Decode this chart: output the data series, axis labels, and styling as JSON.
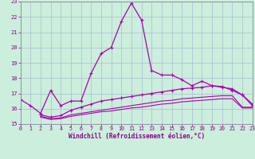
{
  "xlabel": "Windchill (Refroidissement éolien,°C)",
  "bg_color": "#cceedd",
  "grid_color": "#aabbcc",
  "line_color": "#aa00aa",
  "xlim": [
    0,
    23
  ],
  "ylim": [
    15,
    23
  ],
  "xticks": [
    0,
    1,
    2,
    3,
    4,
    5,
    6,
    7,
    8,
    9,
    10,
    11,
    12,
    13,
    14,
    15,
    16,
    17,
    18,
    19,
    20,
    21,
    22,
    23
  ],
  "yticks": [
    15,
    16,
    17,
    18,
    19,
    20,
    21,
    22,
    23
  ],
  "line1_x": [
    0,
    1,
    2,
    3,
    4,
    5,
    6,
    7,
    8,
    9,
    10,
    11,
    12,
    13,
    14,
    15,
    16,
    17,
    18,
    19,
    20,
    21,
    22,
    23
  ],
  "line1_y": [
    16.6,
    16.2,
    15.7,
    17.2,
    16.2,
    16.5,
    16.5,
    18.3,
    19.6,
    20.0,
    21.7,
    22.9,
    21.8,
    18.5,
    18.2,
    18.2,
    17.9,
    17.5,
    17.8,
    17.5,
    17.4,
    17.3,
    16.9,
    16.3
  ],
  "line2_x": [
    2,
    3,
    4,
    5,
    6,
    7,
    8,
    9,
    10,
    11,
    12,
    13,
    14,
    15,
    16,
    17,
    18,
    19,
    20,
    21,
    22,
    23
  ],
  "line2_y": [
    15.6,
    15.45,
    15.55,
    15.9,
    16.1,
    16.3,
    16.5,
    16.6,
    16.7,
    16.8,
    16.9,
    17.0,
    17.1,
    17.2,
    17.3,
    17.35,
    17.4,
    17.5,
    17.45,
    17.2,
    16.9,
    16.2
  ],
  "line3_x": [
    2,
    3,
    4,
    5,
    6,
    7,
    8,
    9,
    10,
    11,
    12,
    13,
    14,
    15,
    16,
    17,
    18,
    19,
    20,
    21,
    22,
    23
  ],
  "line3_y": [
    15.5,
    15.35,
    15.4,
    15.6,
    15.7,
    15.8,
    15.9,
    16.0,
    16.1,
    16.2,
    16.3,
    16.4,
    16.5,
    16.55,
    16.65,
    16.7,
    16.75,
    16.8,
    16.85,
    16.85,
    16.1,
    16.1
  ],
  "line4_x": [
    2,
    3,
    4,
    5,
    6,
    7,
    8,
    9,
    10,
    11,
    12,
    13,
    14,
    15,
    16,
    17,
    18,
    19,
    20,
    21,
    22,
    23
  ],
  "line4_y": [
    15.45,
    15.3,
    15.35,
    15.5,
    15.6,
    15.7,
    15.8,
    15.85,
    15.95,
    16.05,
    16.1,
    16.2,
    16.3,
    16.35,
    16.45,
    16.5,
    16.55,
    16.6,
    16.65,
    16.65,
    16.05,
    16.05
  ]
}
